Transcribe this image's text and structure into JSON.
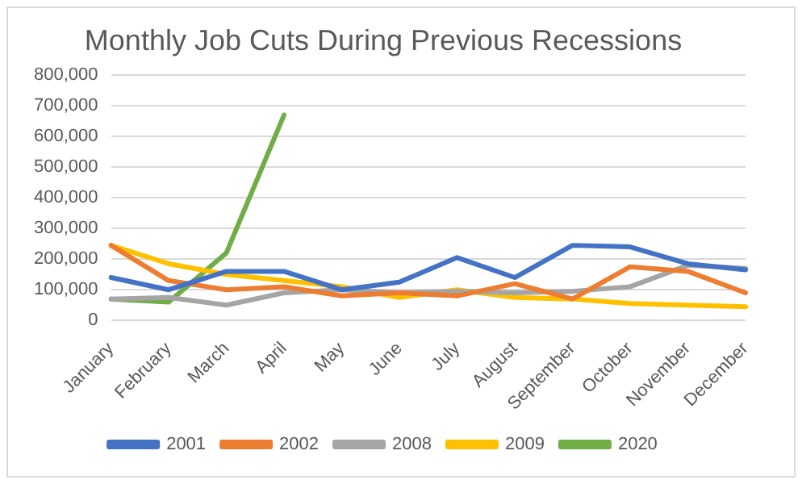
{
  "chart_data": {
    "type": "line",
    "title": "Monthly Job Cuts During Previous Recessions",
    "categories": [
      "January",
      "February",
      "March",
      "April",
      "May",
      "June",
      "July",
      "August",
      "September",
      "October",
      "November",
      "December"
    ],
    "series": [
      {
        "name": "2001",
        "color": "#4472c4",
        "values": [
          140000,
          100000,
          160000,
          160000,
          100000,
          125000,
          205000,
          140000,
          245000,
          240000,
          185000,
          165000
        ]
      },
      {
        "name": "2002",
        "color": "#ed7d31",
        "values": [
          245000,
          130000,
          100000,
          110000,
          80000,
          90000,
          80000,
          120000,
          70000,
          175000,
          160000,
          90000
        ]
      },
      {
        "name": "2008",
        "color": "#a5a5a5",
        "values": [
          70000,
          75000,
          50000,
          90000,
          100000,
          90000,
          95000,
          90000,
          95000,
          110000,
          180000,
          170000
        ]
      },
      {
        "name": "2009",
        "color": "#ffc000",
        "values": [
          245000,
          185000,
          150000,
          130000,
          110000,
          75000,
          100000,
          75000,
          70000,
          55000,
          50000,
          45000
        ]
      },
      {
        "name": "2020",
        "color": "#70ad47",
        "values": [
          70000,
          60000,
          220000,
          670000,
          null,
          null,
          null,
          null,
          null,
          null,
          null,
          null
        ]
      }
    ],
    "ylim": [
      0,
      800000
    ],
    "yticks": [
      0,
      {
        "value": 100000,
        "label": "100,000"
      },
      {
        "value": 200000,
        "label": "200,000"
      },
      {
        "value": 300000,
        "label": "300,000"
      },
      {
        "value": 400000,
        "label": "400,000"
      },
      {
        "value": 500000,
        "label": "500,000"
      },
      {
        "value": 600000,
        "label": "600,000"
      },
      {
        "value": 700000,
        "label": "700,000"
      },
      {
        "value": 800000,
        "label": "800,000"
      }
    ],
    "grid": "y",
    "legend": "bottom",
    "marker": "none",
    "line_style": "solid"
  }
}
